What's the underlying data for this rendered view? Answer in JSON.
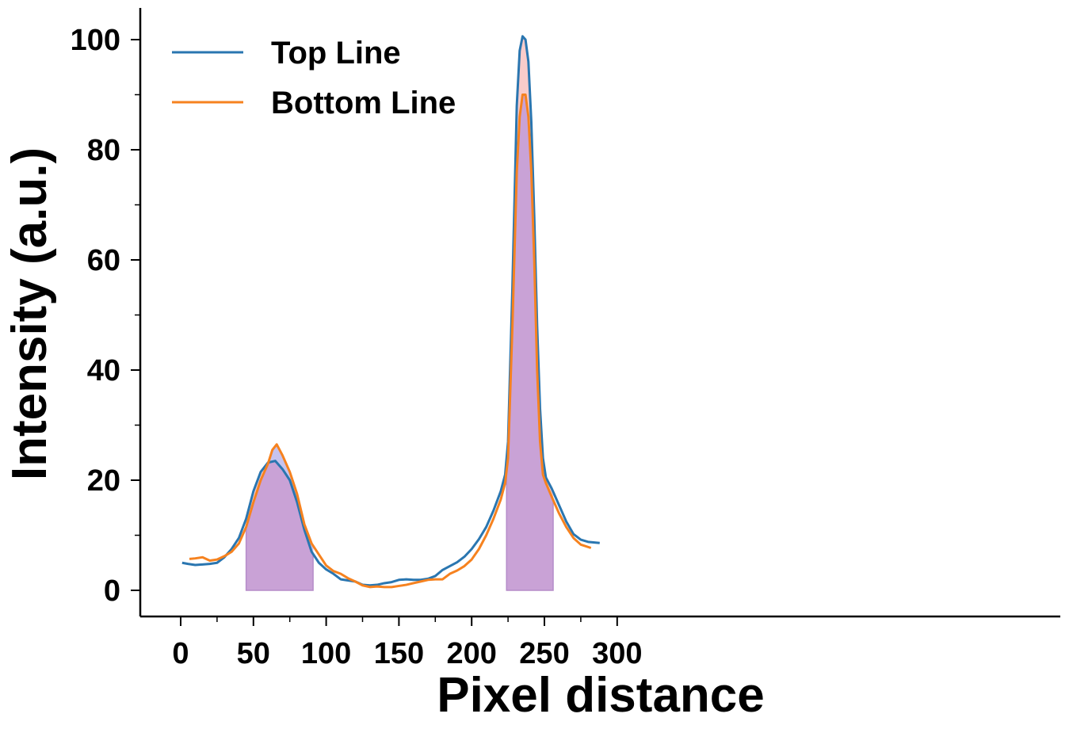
{
  "chart_data": {
    "type": "line",
    "xlabel": "Pixel distance",
    "ylabel": "Intensity (a.u.)",
    "xlim": [
      -14,
      302
    ],
    "ylim": [
      -5,
      106
    ],
    "x_major_ticks": [
      0,
      50,
      100,
      150,
      200,
      250,
      300
    ],
    "x_tick_labels": [
      "0",
      "50",
      "100",
      "150",
      "200",
      "250",
      "300"
    ],
    "x_minor_ticks": [
      25,
      75,
      125,
      175,
      225,
      275
    ],
    "y_major_ticks": [
      0,
      20,
      40,
      60,
      80,
      100
    ],
    "y_tick_labels": [
      "0",
      "20",
      "40",
      "60",
      "80",
      "100"
    ],
    "y_minor_ticks": [
      10,
      30,
      50,
      70,
      90
    ],
    "grid": false,
    "legend_position": "top-left",
    "shaded_regions": [
      {
        "x_start": 45,
        "x_end": 91,
        "color": "#c9a2d6"
      },
      {
        "x_start": 224,
        "x_end": 256,
        "color": "#c9a2d6"
      }
    ],
    "difference_fill_colors": {
      "top_above": "#f9cccb",
      "bottom_above": "#c6c3ee"
    },
    "series": [
      {
        "name": "Top Line",
        "color": "#2a76b0",
        "points": [
          [
            1,
            5
          ],
          [
            5,
            4.8
          ],
          [
            10,
            4.6
          ],
          [
            15,
            4.7
          ],
          [
            20,
            4.8
          ],
          [
            25,
            5
          ],
          [
            30,
            6
          ],
          [
            35,
            7.5
          ],
          [
            40,
            9.5
          ],
          [
            45,
            13
          ],
          [
            50,
            18
          ],
          [
            55,
            21.5
          ],
          [
            60,
            23.2
          ],
          [
            65,
            23.5
          ],
          [
            70,
            22
          ],
          [
            75,
            20
          ],
          [
            80,
            16
          ],
          [
            85,
            11
          ],
          [
            90,
            7
          ],
          [
            95,
            5
          ],
          [
            100,
            3.8
          ],
          [
            105,
            3
          ],
          [
            110,
            2
          ],
          [
            115,
            1.8
          ],
          [
            120,
            1.6
          ],
          [
            125,
            1
          ],
          [
            130,
            0.9
          ],
          [
            135,
            1
          ],
          [
            140,
            1.3
          ],
          [
            145,
            1.5
          ],
          [
            150,
            1.9
          ],
          [
            155,
            2
          ],
          [
            160,
            1.9
          ],
          [
            165,
            1.9
          ],
          [
            170,
            2.1
          ],
          [
            175,
            2.6
          ],
          [
            180,
            3.7
          ],
          [
            185,
            4.4
          ],
          [
            190,
            5.1
          ],
          [
            195,
            6.1
          ],
          [
            200,
            7.5
          ],
          [
            205,
            9.3
          ],
          [
            210,
            11.5
          ],
          [
            215,
            14.5
          ],
          [
            220,
            18
          ],
          [
            223,
            21
          ],
          [
            225,
            27
          ],
          [
            228,
            55
          ],
          [
            231,
            88
          ],
          [
            233,
            98
          ],
          [
            235,
            100.6
          ],
          [
            237,
            100
          ],
          [
            239,
            96
          ],
          [
            241,
            85
          ],
          [
            243,
            68
          ],
          [
            245,
            48
          ],
          [
            247,
            33
          ],
          [
            249,
            24
          ],
          [
            251,
            20.5
          ],
          [
            255,
            18.5
          ],
          [
            260,
            15.5
          ],
          [
            265,
            12.5
          ],
          [
            270,
            10.2
          ],
          [
            275,
            9.2
          ],
          [
            280,
            8.8
          ],
          [
            288,
            8.6
          ]
        ]
      },
      {
        "name": "Bottom Line",
        "color": "#f6821f",
        "points": [
          [
            6,
            5.7
          ],
          [
            10,
            5.8
          ],
          [
            15,
            6
          ],
          [
            20,
            5.4
          ],
          [
            25,
            5.6
          ],
          [
            30,
            6.2
          ],
          [
            35,
            7
          ],
          [
            40,
            8.5
          ],
          [
            45,
            11.5
          ],
          [
            50,
            16
          ],
          [
            55,
            20
          ],
          [
            60,
            23
          ],
          [
            63,
            25.5
          ],
          [
            66,
            26.5
          ],
          [
            70,
            24.5
          ],
          [
            75,
            21.5
          ],
          [
            80,
            17.5
          ],
          [
            85,
            12
          ],
          [
            90,
            8.5
          ],
          [
            95,
            6.5
          ],
          [
            100,
            4.5
          ],
          [
            105,
            3.5
          ],
          [
            110,
            3
          ],
          [
            115,
            2.2
          ],
          [
            120,
            1.6
          ],
          [
            125,
            0.9
          ],
          [
            130,
            0.6
          ],
          [
            135,
            0.7
          ],
          [
            140,
            0.6
          ],
          [
            145,
            0.6
          ],
          [
            150,
            0.8
          ],
          [
            155,
            1
          ],
          [
            160,
            1.3
          ],
          [
            165,
            1.6
          ],
          [
            170,
            1.9
          ],
          [
            175,
            2
          ],
          [
            180,
            2
          ],
          [
            185,
            3
          ],
          [
            190,
            3.6
          ],
          [
            195,
            4.4
          ],
          [
            200,
            5.6
          ],
          [
            205,
            7.5
          ],
          [
            210,
            10
          ],
          [
            215,
            13
          ],
          [
            220,
            16.5
          ],
          [
            223,
            19.5
          ],
          [
            225,
            24
          ],
          [
            228,
            48
          ],
          [
            231,
            76
          ],
          [
            233,
            86
          ],
          [
            235,
            90
          ],
          [
            237,
            90
          ],
          [
            239,
            86
          ],
          [
            241,
            76
          ],
          [
            243,
            60
          ],
          [
            245,
            40
          ],
          [
            247,
            27
          ],
          [
            249,
            21
          ],
          [
            251,
            19.5
          ],
          [
            255,
            17
          ],
          [
            260,
            14
          ],
          [
            265,
            11.5
          ],
          [
            270,
            9.5
          ],
          [
            275,
            8.3
          ],
          [
            282,
            7.7
          ]
        ]
      }
    ]
  }
}
